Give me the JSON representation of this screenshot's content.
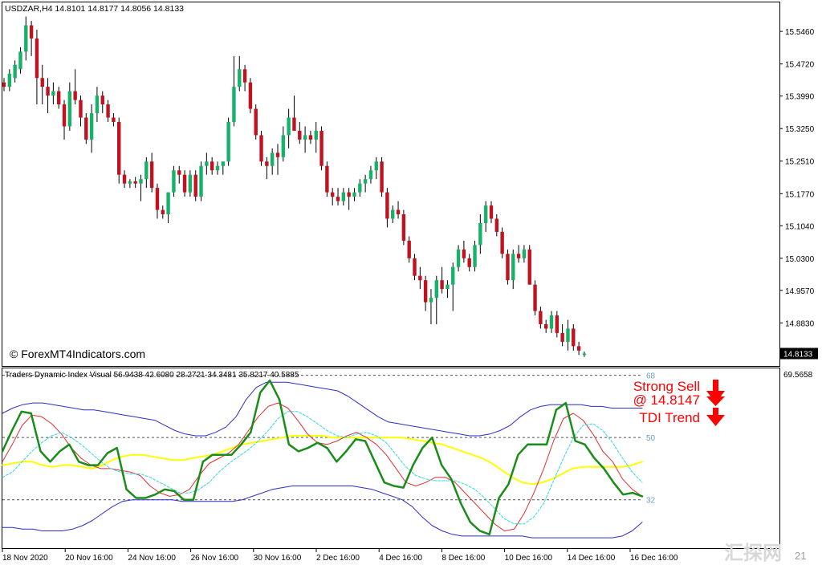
{
  "chart_data": [
    {
      "type": "candlestick",
      "title": "USDZAR,H4  14.8101 14.8177 14.8056 14.8133",
      "watermark": "© ForexMT4Indicators.com",
      "price_axis": {
        "ticks": [
          "15.5460",
          "15.4720",
          "15.3990",
          "15.3250",
          "15.2510",
          "15.1770",
          "15.1040",
          "15.0300",
          "14.9570",
          "14.8830"
        ],
        "ylim": [
          14.785,
          15.612
        ],
        "current_price_label": "14.8133",
        "current_price": 14.8133
      },
      "colors": {
        "bull": "#17b26a",
        "bear": "#c1121f",
        "wick": "#000000"
      },
      "candles": [
        [
          15.43,
          15.44,
          15.41,
          15.42
        ],
        [
          15.42,
          15.46,
          15.41,
          15.45
        ],
        [
          15.44,
          15.48,
          15.43,
          15.47
        ],
        [
          15.46,
          15.51,
          15.45,
          15.5
        ],
        [
          15.5,
          15.58,
          15.48,
          15.56
        ],
        [
          15.56,
          15.57,
          15.49,
          15.53
        ],
        [
          15.53,
          15.55,
          15.38,
          15.44
        ],
        [
          15.44,
          15.47,
          15.38,
          15.42
        ],
        [
          15.42,
          15.44,
          15.36,
          15.4
        ],
        [
          15.4,
          15.43,
          15.38,
          15.41
        ],
        [
          15.41,
          15.42,
          15.37,
          15.38
        ],
        [
          15.38,
          15.39,
          15.3,
          15.33
        ],
        [
          15.33,
          15.43,
          15.32,
          15.41
        ],
        [
          15.41,
          15.46,
          15.38,
          15.39
        ],
        [
          15.39,
          15.4,
          15.33,
          15.35
        ],
        [
          15.35,
          15.36,
          15.29,
          15.3
        ],
        [
          15.3,
          15.38,
          15.27,
          15.36
        ],
        [
          15.36,
          15.42,
          15.34,
          15.4
        ],
        [
          15.4,
          15.41,
          15.36,
          15.38
        ],
        [
          15.38,
          15.39,
          15.34,
          15.35
        ],
        [
          15.35,
          15.36,
          15.33,
          15.34
        ],
        [
          15.34,
          15.35,
          15.2,
          15.22
        ],
        [
          15.22,
          15.23,
          15.19,
          15.2
        ],
        [
          15.2,
          15.21,
          15.19,
          15.205
        ],
        [
          15.205,
          15.215,
          15.19,
          15.2
        ],
        [
          15.2,
          15.22,
          15.16,
          15.21
        ],
        [
          15.21,
          15.26,
          15.19,
          15.25
        ],
        [
          15.25,
          15.27,
          15.18,
          15.19
        ],
        [
          15.19,
          15.2,
          15.12,
          15.14
        ],
        [
          15.14,
          15.15,
          15.12,
          15.13
        ],
        [
          15.13,
          15.18,
          15.11,
          15.18
        ],
        [
          15.18,
          15.24,
          15.17,
          15.23
        ],
        [
          15.23,
          15.24,
          15.2,
          15.22
        ],
        [
          15.22,
          15.23,
          15.17,
          15.18
        ],
        [
          15.18,
          15.23,
          15.17,
          15.22
        ],
        [
          15.22,
          15.23,
          15.16,
          15.17
        ],
        [
          15.17,
          15.25,
          15.16,
          15.24
        ],
        [
          15.24,
          15.27,
          15.22,
          15.25
        ],
        [
          15.25,
          15.26,
          15.22,
          15.23
        ],
        [
          15.23,
          15.25,
          15.22,
          15.24
        ],
        [
          15.24,
          15.25,
          15.22,
          15.25
        ],
        [
          15.25,
          15.35,
          15.24,
          15.34
        ],
        [
          15.34,
          15.49,
          15.33,
          15.42
        ],
        [
          15.42,
          15.49,
          15.41,
          15.46
        ],
        [
          15.46,
          15.47,
          15.41,
          15.43
        ],
        [
          15.43,
          15.44,
          15.36,
          15.37
        ],
        [
          15.37,
          15.38,
          15.3,
          15.31
        ],
        [
          15.31,
          15.32,
          15.24,
          15.25
        ],
        [
          15.25,
          15.26,
          15.21,
          15.24
        ],
        [
          15.24,
          15.28,
          15.22,
          15.27
        ],
        [
          15.27,
          15.29,
          15.22,
          15.26
        ],
        [
          15.26,
          15.33,
          15.25,
          15.31
        ],
        [
          15.31,
          15.37,
          15.28,
          15.35
        ],
        [
          15.35,
          15.4,
          15.32,
          15.32
        ],
        [
          15.32,
          15.34,
          15.29,
          15.3
        ],
        [
          15.3,
          15.33,
          15.27,
          15.31
        ],
        [
          15.31,
          15.32,
          15.29,
          15.3
        ],
        [
          15.3,
          15.34,
          15.27,
          15.32
        ],
        [
          15.32,
          15.33,
          15.23,
          15.24
        ],
        [
          15.24,
          15.25,
          15.17,
          15.18
        ],
        [
          15.18,
          15.19,
          15.15,
          15.17
        ],
        [
          15.17,
          15.19,
          15.15,
          15.16
        ],
        [
          15.16,
          15.19,
          15.15,
          15.18
        ],
        [
          15.18,
          15.19,
          15.14,
          15.17
        ],
        [
          15.17,
          15.19,
          15.16,
          15.18
        ],
        [
          15.18,
          15.21,
          15.17,
          15.2
        ],
        [
          15.2,
          15.22,
          15.18,
          15.21
        ],
        [
          15.21,
          15.24,
          15.2,
          15.23
        ],
        [
          15.23,
          15.26,
          15.21,
          15.25
        ],
        [
          15.25,
          15.26,
          15.17,
          15.18
        ],
        [
          15.18,
          15.19,
          15.1,
          15.12
        ],
        [
          15.12,
          15.15,
          15.11,
          15.14
        ],
        [
          15.14,
          15.16,
          15.12,
          15.13
        ],
        [
          15.13,
          15.14,
          15.06,
          15.07
        ],
        [
          15.07,
          15.08,
          15.02,
          15.03
        ],
        [
          15.03,
          15.04,
          14.98,
          14.99
        ],
        [
          14.99,
          15.01,
          14.96,
          14.98
        ],
        [
          14.98,
          14.99,
          14.91,
          14.93
        ],
        [
          14.93,
          14.96,
          14.88,
          14.94
        ],
        [
          14.94,
          14.99,
          14.88,
          14.98
        ],
        [
          14.98,
          15.01,
          14.95,
          14.96
        ],
        [
          14.96,
          14.98,
          14.94,
          14.97
        ],
        [
          14.97,
          15.02,
          14.91,
          15.01
        ],
        [
          15.01,
          15.06,
          15.0,
          15.05
        ],
        [
          15.05,
          15.07,
          15.02,
          15.03
        ],
        [
          15.03,
          15.04,
          15.0,
          15.01
        ],
        [
          15.01,
          15.07,
          15.0,
          15.06
        ],
        [
          15.06,
          15.13,
          15.04,
          15.11
        ],
        [
          15.11,
          15.16,
          15.09,
          15.15
        ],
        [
          15.15,
          15.16,
          15.11,
          15.12
        ],
        [
          15.12,
          15.13,
          15.08,
          15.09
        ],
        [
          15.09,
          15.1,
          15.03,
          15.04
        ],
        [
          15.04,
          15.05,
          14.97,
          14.98
        ],
        [
          14.98,
          15.05,
          14.96,
          15.04
        ],
        [
          15.04,
          15.06,
          15.02,
          15.03
        ],
        [
          15.03,
          15.06,
          15.02,
          15.05
        ],
        [
          15.05,
          15.06,
          14.97,
          14.97
        ],
        [
          14.97,
          14.98,
          14.9,
          14.91
        ],
        [
          14.91,
          14.92,
          14.87,
          14.88
        ],
        [
          14.88,
          14.89,
          14.86,
          14.87
        ],
        [
          14.87,
          14.91,
          14.86,
          14.9
        ],
        [
          14.9,
          14.91,
          14.85,
          14.86
        ],
        [
          14.86,
          14.88,
          14.83,
          14.84
        ],
        [
          14.84,
          14.89,
          14.82,
          14.87
        ],
        [
          14.87,
          14.88,
          14.82,
          14.83
        ],
        [
          14.83,
          14.84,
          14.81,
          14.82
        ],
        [
          14.8101,
          14.8177,
          14.8056,
          14.8133
        ]
      ]
    },
    {
      "type": "line",
      "title": "Traders Dynamic Index Visual 56.9438 42.6080 28.2721 34.3481 35.8217 40.5885",
      "levels": [
        {
          "value": 68,
          "label": "68"
        },
        {
          "value": 50,
          "label": "50"
        },
        {
          "value": 32,
          "label": "32"
        }
      ],
      "axis_label": "69.5658",
      "ylim": [
        18,
        70
      ],
      "series": [
        {
          "key": "upper_band",
          "color": "#2d2dc8",
          "style": "solid",
          "width": 1,
          "values": [
            57,
            58.5,
            59.5,
            60,
            60,
            59.5,
            59,
            58.5,
            58,
            58,
            57.5,
            57,
            56.5,
            56,
            55.5,
            55,
            53.5,
            52,
            51,
            50.5,
            50.5,
            51.5,
            53,
            56,
            61,
            64.5,
            66,
            66,
            66,
            65.5,
            65,
            64.5,
            64,
            63.5,
            62,
            60,
            58,
            56,
            54.5,
            54,
            53.5,
            53,
            52.5,
            52,
            51.5,
            51,
            50.5,
            50.5,
            51,
            52,
            53.5,
            56,
            58,
            59,
            59.5,
            59.5,
            59.5,
            59.5,
            59,
            59,
            58.5,
            58.5,
            58.5,
            58.5
          ]
        },
        {
          "key": "lower_band",
          "color": "#2d2dc8",
          "style": "solid",
          "width": 1,
          "values": [
            24,
            24,
            23.5,
            23.5,
            23,
            23,
            23,
            23.5,
            24.5,
            26,
            28,
            30,
            31.5,
            32,
            32,
            32,
            32,
            32,
            31.5,
            31.5,
            31.5,
            31.5,
            31.5,
            31.5,
            32,
            33,
            34,
            35,
            35.5,
            36,
            36,
            36,
            36,
            36,
            36,
            36,
            35.5,
            35,
            34,
            33,
            32,
            30,
            27,
            24.5,
            23,
            22,
            21.5,
            21.5,
            21.5,
            21.5,
            21.5,
            21.5,
            21.5,
            21,
            21,
            21,
            21,
            21,
            21,
            21,
            21,
            21,
            21.5,
            23,
            25.5
          ]
        },
        {
          "key": "market_base",
          "color": "#ffff00",
          "style": "solid",
          "width": 2,
          "values": [
            42,
            42.5,
            43,
            43,
            42,
            41.5,
            42,
            42,
            41.5,
            41,
            42,
            43.5,
            44.5,
            45,
            45,
            44.5,
            44,
            43.5,
            43.5,
            44,
            44.5,
            45,
            46,
            47,
            48,
            48.5,
            49,
            49.5,
            50,
            50.5,
            50.5,
            50.5,
            50.5,
            50,
            50,
            50,
            50,
            50,
            50,
            50,
            50,
            49.5,
            49,
            48.5,
            48,
            47,
            46,
            45,
            44,
            42.5,
            40.5,
            38.5,
            37,
            36.5,
            37,
            38,
            39.5,
            41,
            41.5,
            41.5,
            41.5,
            41.5,
            41.5,
            42,
            43
          ]
        },
        {
          "key": "price_line",
          "color": "#e03030",
          "style": "solid",
          "width": 1,
          "values": [
            43,
            48,
            53.5,
            56.5,
            56,
            54,
            51,
            47,
            44,
            42,
            41,
            41,
            40.5,
            40,
            39,
            36,
            34,
            33,
            33.5,
            35,
            39,
            42.5,
            44,
            45.5,
            48,
            52,
            56,
            59,
            60,
            58.5,
            55,
            51,
            48.5,
            48,
            49,
            50.5,
            51.5,
            50,
            48,
            45,
            41,
            37,
            36,
            37,
            38.5,
            38.5,
            37,
            34,
            31,
            28,
            25,
            23,
            23.5,
            28,
            34,
            41,
            49,
            55.5,
            57,
            55,
            51,
            46,
            43,
            38,
            35,
            33
          ]
        },
        {
          "key": "signal_line",
          "color": "#30d8e0",
          "style": "dashed",
          "width": 1,
          "values": [
            38.5,
            40,
            43,
            46,
            48.5,
            50.5,
            51.5,
            50,
            48,
            45.5,
            43,
            41,
            40,
            39.5,
            39.5,
            38.5,
            37,
            35.5,
            34,
            34,
            35,
            37,
            40,
            42.5,
            44.5,
            46.5,
            49,
            52,
            55.5,
            57.5,
            57.5,
            56,
            54,
            52,
            50.5,
            50,
            51,
            51.5,
            50.5,
            48.5,
            45,
            41.5,
            39,
            38,
            37.5,
            37.5,
            37.5,
            36.5,
            35,
            32.5,
            29.5,
            26.5,
            25,
            25,
            27,
            31,
            37.5,
            44,
            50,
            53.5,
            54,
            52,
            48.5,
            44,
            40,
            37
          ]
        },
        {
          "key": "rsi_line",
          "color": "#1a8c1a",
          "style": "solid",
          "width": 2.5,
          "values": [
            46,
            52,
            57.5,
            57,
            46,
            43,
            46,
            48,
            43,
            42,
            42,
            45.5,
            47,
            35,
            32.5,
            32.5,
            33.5,
            35,
            34.5,
            32,
            32,
            43,
            45,
            45,
            45,
            48,
            51.5,
            63,
            66.5,
            61,
            48,
            46,
            47,
            48.5,
            47,
            43,
            46,
            49.5,
            49,
            43,
            37,
            36,
            35.5,
            42,
            47,
            50,
            42,
            38,
            31,
            25.5,
            23,
            22,
            32.5,
            36.5,
            45,
            48,
            48,
            48,
            58,
            60,
            49,
            48,
            44,
            41,
            37,
            33.5,
            34,
            33
          ]
        }
      ]
    }
  ],
  "signals": {
    "strong_sell_line1": "Strong Sell",
    "strong_sell_line2": "@ 14.8147",
    "tdi_trend": "TDI Trend"
  },
  "time_axis": {
    "labels": [
      "18 Nov 2020",
      "20 Nov 16:00",
      "24 Nov 16:00",
      "26 Nov 16:00",
      "30 Nov 16:00",
      "2 Dec 16:00",
      "4 Dec 16:00",
      "8 Dec 16:00",
      "10 Dec 16:00",
      "14 Dec 16:00",
      "16 Dec 16:00"
    ]
  },
  "corner_logo": {
    "text": "汇探网",
    "sub": "21"
  }
}
